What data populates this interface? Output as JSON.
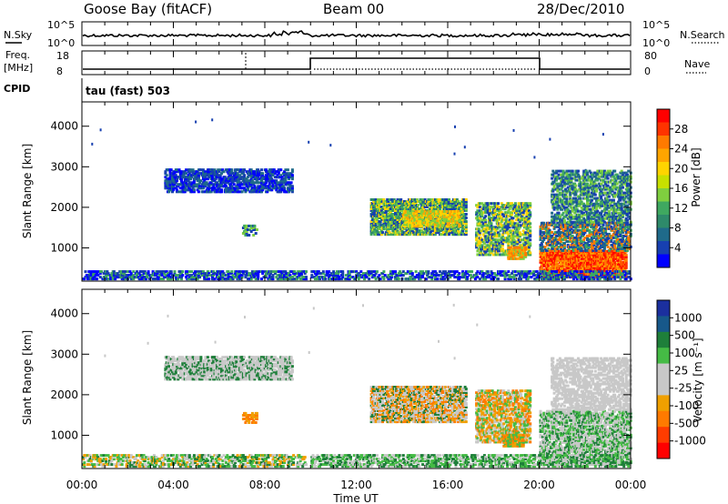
{
  "header": {
    "title": "Goose Bay (fitACF)",
    "beam": "Beam 00",
    "date": "28/Dec/2010"
  },
  "top_panels": {
    "nsky": {
      "left_label": "N.Sky",
      "right_label": "N.Search",
      "left_ticks": [
        "10^5",
        "10^0"
      ],
      "right_ticks": [
        "10^5",
        "10^0"
      ]
    },
    "freq": {
      "left_label_1": "Freq.",
      "left_label_2": "[MHz]",
      "left_ticks": [
        "18",
        "8"
      ],
      "right_label": "Nave",
      "right_ticks": [
        "80",
        "0"
      ]
    },
    "cpid": {
      "label": "CPID",
      "text": "tau (fast) 503"
    }
  },
  "colorbars": {
    "power": {
      "label": "Power [dB]",
      "ticks": [
        "28",
        "24",
        "20",
        "16",
        "12",
        "8",
        "4"
      ],
      "colors": [
        "#ff0000",
        "#ff3300",
        "#ff7a00",
        "#ffa500",
        "#ffd400",
        "#c8e000",
        "#7fcf3f",
        "#3fa860",
        "#2e8a6a",
        "#1f6a8a",
        "#1740b0",
        "#0000ff"
      ]
    },
    "velocity": {
      "label": "Velocity [m s⁻¹]",
      "ticks": [
        "1000",
        "500",
        "100",
        "25",
        "-25",
        "-100",
        "-500",
        "-1000"
      ],
      "colors": [
        "#1b2f9e",
        "#17588a",
        "#1e7f3a",
        "#45bb45",
        "#c8c8c8",
        "#c8c8c8",
        "#f0a000",
        "#ff7a00",
        "#ff3c00",
        "#ff0000"
      ]
    }
  },
  "chart_data": [
    {
      "type": "heatmap",
      "name": "power",
      "ylabel": "Slant Range [km]",
      "yticks": [
        "1000",
        "2000",
        "3000",
        "4000"
      ],
      "yvals": [
        1000,
        2000,
        3000,
        4000
      ],
      "ylim": [
        180,
        4600
      ],
      "xlim": [
        0,
        24
      ],
      "regions": [
        {
          "t0": 3.6,
          "t1": 9.2,
          "r0": 2350,
          "r1": 2900,
          "density": 0.55,
          "colors": [
            "#1740b0",
            "#1f6a8a",
            "#0000ff"
          ]
        },
        {
          "t0": 7.0,
          "t1": 7.6,
          "r0": 1280,
          "r1": 1550,
          "density": 0.5,
          "colors": [
            "#1740b0",
            "#3fa860",
            "#7fcf3f"
          ]
        },
        {
          "t0": 0.0,
          "t1": 9.8,
          "r0": 200,
          "r1": 420,
          "density": 0.5,
          "colors": [
            "#1740b0",
            "#0000ff",
            "#3fa860"
          ]
        },
        {
          "t0": 12.6,
          "t1": 16.8,
          "r0": 1300,
          "r1": 2200,
          "density": 0.7,
          "colors": [
            "#1740b0",
            "#2e8a6a",
            "#3fa860",
            "#7fcf3f",
            "#ffd400"
          ]
        },
        {
          "t0": 14.0,
          "t1": 16.5,
          "r0": 1500,
          "r1": 1900,
          "density": 0.6,
          "colors": [
            "#ffa500",
            "#ffd400",
            "#7fcf3f"
          ]
        },
        {
          "t0": 17.2,
          "t1": 19.6,
          "r0": 800,
          "r1": 2100,
          "density": 0.5,
          "colors": [
            "#1740b0",
            "#3fa860",
            "#ffd400",
            "#7fcf3f"
          ]
        },
        {
          "t0": 18.6,
          "t1": 19.4,
          "r0": 700,
          "r1": 1000,
          "density": 0.7,
          "colors": [
            "#ffa500",
            "#ff7a00",
            "#7fcf3f"
          ]
        },
        {
          "t0": 20.0,
          "t1": 23.8,
          "r0": 250,
          "r1": 900,
          "density": 0.85,
          "colors": [
            "#ff0000",
            "#ff3300",
            "#ff7a00",
            "#ffa500"
          ]
        },
        {
          "t0": 20.0,
          "t1": 24.0,
          "r0": 900,
          "r1": 1600,
          "density": 0.55,
          "colors": [
            "#1740b0",
            "#1f6a8a",
            "#3fa860",
            "#ff7a00"
          ]
        },
        {
          "t0": 20.5,
          "t1": 24.0,
          "r0": 1600,
          "r1": 2900,
          "density": 0.45,
          "colors": [
            "#1740b0",
            "#1f6a8a",
            "#3fa860",
            "#7fcf3f"
          ]
        },
        {
          "t0": 10.0,
          "t1": 24.0,
          "r0": 200,
          "r1": 420,
          "density": 0.45,
          "colors": [
            "#1740b0",
            "#0000ff",
            "#3fa860"
          ]
        }
      ]
    },
    {
      "type": "heatmap",
      "name": "velocity",
      "ylabel": "Slant Range [km]",
      "yticks": [
        "1000",
        "2000",
        "3000",
        "4000"
      ],
      "yvals": [
        1000,
        2000,
        3000,
        4000
      ],
      "ylim": [
        180,
        4600
      ],
      "xlim": [
        0,
        24
      ],
      "xticks": [
        "00:00",
        "04:00",
        "08:00",
        "12:00",
        "16:00",
        "20:00",
        "00:00"
      ],
      "xvals": [
        0,
        4,
        8,
        12,
        16,
        20,
        24
      ],
      "xlabel": "Time UT",
      "regions": [
        {
          "t0": 3.6,
          "t1": 9.2,
          "r0": 2350,
          "r1": 2900,
          "density": 0.6,
          "colors": [
            "#c8c8c8",
            "#c8c8c8",
            "#1e7f3a"
          ]
        },
        {
          "t0": 7.0,
          "t1": 7.6,
          "r0": 1280,
          "r1": 1550,
          "density": 0.5,
          "colors": [
            "#f0a000",
            "#ff7a00"
          ]
        },
        {
          "t0": 0.0,
          "t1": 9.8,
          "r0": 200,
          "r1": 480,
          "density": 0.45,
          "colors": [
            "#45bb45",
            "#c8c8c8",
            "#f0a000",
            "#1e7f3a"
          ]
        },
        {
          "t0": 12.6,
          "t1": 16.8,
          "r0": 1300,
          "r1": 2200,
          "density": 0.75,
          "colors": [
            "#c8c8c8",
            "#c8c8c8",
            "#f0a000",
            "#ff7a00",
            "#1e7f3a"
          ]
        },
        {
          "t0": 17.2,
          "t1": 19.6,
          "r0": 800,
          "r1": 2100,
          "density": 0.55,
          "colors": [
            "#c8c8c8",
            "#f0a000",
            "#ff7a00",
            "#45bb45"
          ]
        },
        {
          "t0": 18.4,
          "t1": 19.3,
          "r0": 700,
          "r1": 1000,
          "density": 0.75,
          "colors": [
            "#45bb45",
            "#f0a000",
            "#ff7a00"
          ]
        },
        {
          "t0": 20.0,
          "t1": 24.0,
          "r0": 250,
          "r1": 1600,
          "density": 0.6,
          "colors": [
            "#c8c8c8",
            "#c8c8c8",
            "#45bb45",
            "#1e7f3a"
          ]
        },
        {
          "t0": 20.5,
          "t1": 24.0,
          "r0": 1600,
          "r1": 2900,
          "density": 0.45,
          "colors": [
            "#c8c8c8",
            "#c8c8c8"
          ]
        },
        {
          "t0": 10.0,
          "t1": 24.0,
          "r0": 200,
          "r1": 480,
          "density": 0.45,
          "colors": [
            "#45bb45",
            "#c8c8c8",
            "#1e7f3a"
          ]
        }
      ]
    }
  ]
}
